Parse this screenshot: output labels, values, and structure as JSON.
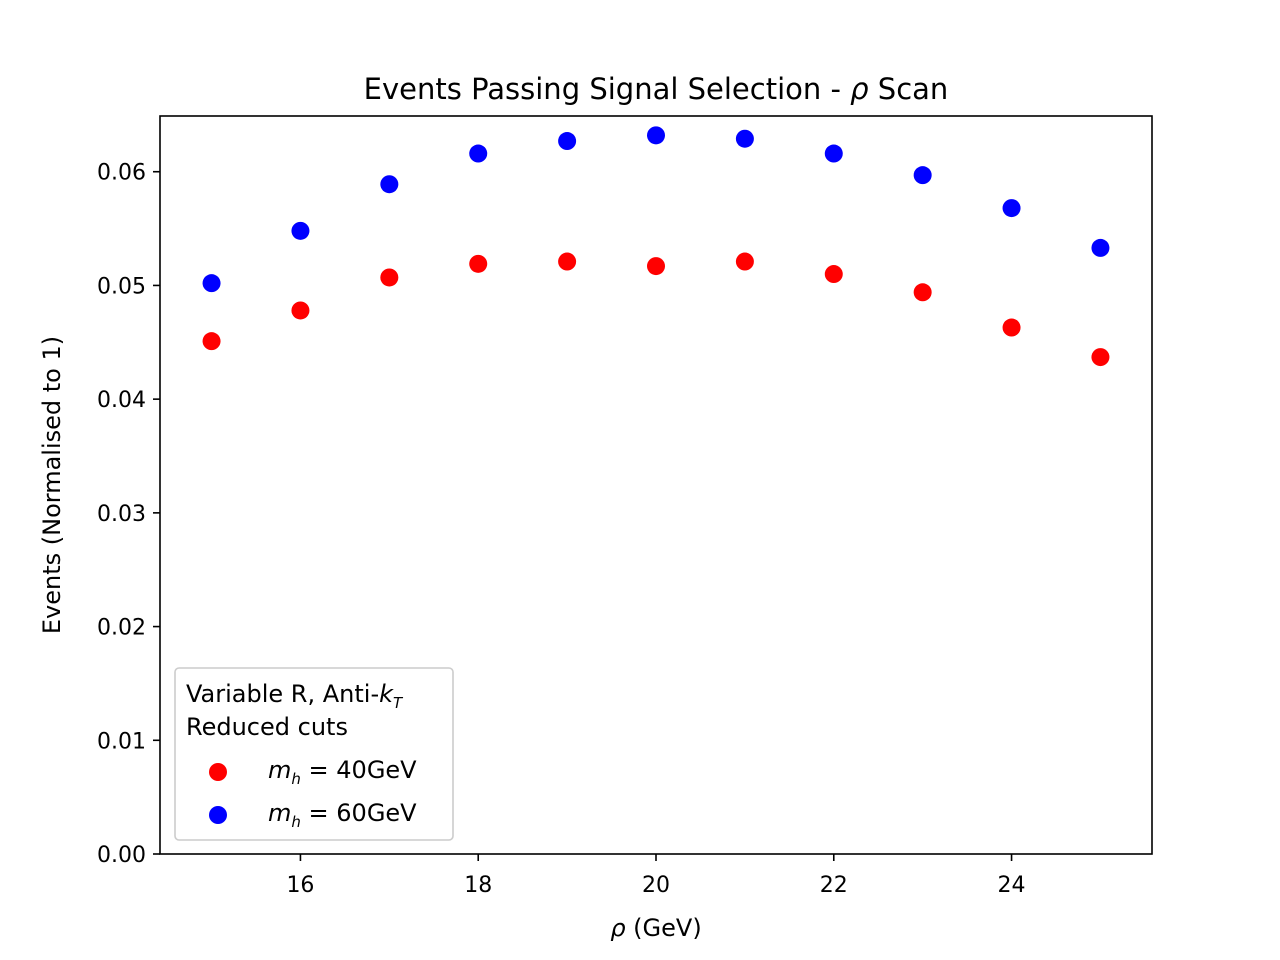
{
  "chart_data": {
    "type": "scatter",
    "title_prefix": "Events Passing Signal Selection - ",
    "title_symbol": "ρ",
    "title_suffix": " Scan",
    "xlabel_symbol": "ρ",
    "xlabel_unit": " (GeV)",
    "ylabel": "Events (Normalised to 1)",
    "xlim": [
      14.42,
      25.58
    ],
    "ylim": [
      0.0,
      0.0649
    ],
    "xticks": [
      16,
      18,
      20,
      22,
      24
    ],
    "xtick_labels": [
      "16",
      "18",
      "20",
      "22",
      "24"
    ],
    "yticks": [
      0.0,
      0.01,
      0.02,
      0.03,
      0.04,
      0.05,
      0.06
    ],
    "ytick_labels": [
      "0.00",
      "0.01",
      "0.02",
      "0.03",
      "0.04",
      "0.05",
      "0.06"
    ],
    "grid": false,
    "legend_placement": "lower-left",
    "legend_title_line1_prefix": "Variable R, Anti-",
    "legend_title_line1_symbol": "k",
    "legend_title_line1_sub": "T",
    "legend_title_line2": "Reduced cuts",
    "x": [
      15,
      16,
      17,
      18,
      19,
      20,
      21,
      22,
      23,
      24,
      25
    ],
    "series": [
      {
        "label_symbol": "m",
        "label_sub": "h",
        "label_value": " = 40GeV",
        "color": "#ff0000",
        "values": [
          0.0451,
          0.0478,
          0.0507,
          0.0519,
          0.0521,
          0.0517,
          0.0521,
          0.051,
          0.0494,
          0.0463,
          0.0437
        ]
      },
      {
        "label_symbol": "m",
        "label_sub": "h",
        "label_value": " = 60GeV",
        "color": "#0000ff",
        "values": [
          0.0502,
          0.0548,
          0.0589,
          0.0616,
          0.0627,
          0.0632,
          0.0629,
          0.0616,
          0.0597,
          0.0568,
          0.0533
        ]
      }
    ]
  }
}
